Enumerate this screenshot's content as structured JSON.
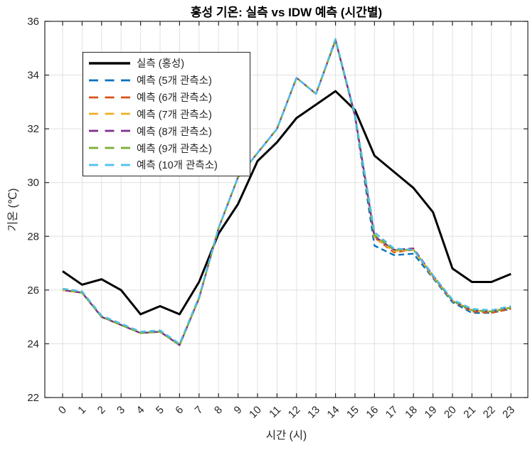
{
  "figure": {
    "title": "홍성 기온: 실측 vs IDW 예측 (시간별)",
    "xlabel": "시간 (시)",
    "ylabel": "기온 (℃)"
  },
  "chart_data": {
    "type": "line",
    "title": "홍성 기온: 실측 vs IDW 예측 (시간별)",
    "xlabel": "시간 (시)",
    "ylabel": "기온 (℃)",
    "x": [
      0,
      1,
      2,
      3,
      4,
      5,
      6,
      7,
      8,
      9,
      10,
      11,
      12,
      13,
      14,
      15,
      16,
      17,
      18,
      19,
      20,
      21,
      22,
      23
    ],
    "xlim": [
      -0.9,
      23.9
    ],
    "ylim": [
      22,
      36
    ],
    "yticks": [
      22,
      24,
      26,
      28,
      30,
      32,
      34,
      36
    ],
    "grid": true,
    "legend_position": "upper-left",
    "axis_color": "#262626",
    "grid_color": "#e0e0e0",
    "background": "#ffffff",
    "series": [
      {
        "id": "actual",
        "label": "실측 (홍성)",
        "color": "#000000",
        "style": "solid",
        "width": 3,
        "values": [
          26.7,
          26.2,
          26.4,
          26.0,
          25.1,
          25.4,
          25.1,
          26.3,
          28.1,
          29.2,
          30.8,
          31.5,
          32.4,
          32.9,
          33.4,
          32.7,
          31.0,
          30.4,
          29.8,
          28.9,
          26.8,
          26.3,
          26.3,
          26.6
        ]
      },
      {
        "id": "pred-5",
        "label": "예측 (5개 관측소)",
        "color": "#0072BD",
        "style": "dashed",
        "width": 2.4,
        "values": [
          26.0,
          25.9,
          25.0,
          24.7,
          24.4,
          24.45,
          23.95,
          25.7,
          28.3,
          30.2,
          31.1,
          32.0,
          33.9,
          33.3,
          35.3,
          32.45,
          27.65,
          27.3,
          27.35,
          26.45,
          25.55,
          25.15,
          25.15,
          25.3
        ]
      },
      {
        "id": "pred-6",
        "label": "예측 (6개 관측소)",
        "color": "#D95319",
        "style": "dashed",
        "width": 2.4,
        "values": [
          26.0,
          25.9,
          25.0,
          24.7,
          24.4,
          24.45,
          23.95,
          25.7,
          28.3,
          30.2,
          31.1,
          32.0,
          33.9,
          33.3,
          35.3,
          32.5,
          27.95,
          27.4,
          27.5,
          26.5,
          25.6,
          25.2,
          25.15,
          25.3
        ]
      },
      {
        "id": "pred-7",
        "label": "예측 (7개 관측소)",
        "color": "#EDB120",
        "style": "dashed",
        "width": 2.4,
        "values": [
          26.0,
          25.9,
          25.0,
          24.7,
          24.4,
          24.45,
          23.95,
          25.7,
          28.3,
          30.2,
          31.1,
          32.0,
          33.9,
          33.3,
          35.3,
          32.5,
          27.95,
          27.45,
          27.5,
          26.5,
          25.6,
          25.25,
          25.2,
          25.35
        ]
      },
      {
        "id": "pred-8",
        "label": "예측 (8개 관측소)",
        "color": "#7E2F8E",
        "style": "dashed",
        "width": 2.4,
        "values": [
          26.0,
          25.9,
          25.0,
          24.7,
          24.4,
          24.45,
          23.95,
          25.7,
          28.3,
          30.2,
          31.1,
          32.0,
          33.9,
          33.3,
          35.3,
          32.5,
          28.0,
          27.5,
          27.55,
          26.55,
          25.6,
          25.25,
          25.2,
          25.35
        ]
      },
      {
        "id": "pred-9",
        "label": "예측 (9개 관측소)",
        "color": "#77AC30",
        "style": "dashed",
        "width": 2.4,
        "values": [
          26.05,
          25.9,
          25.0,
          24.7,
          24.4,
          24.45,
          23.95,
          25.7,
          28.3,
          30.2,
          31.1,
          32.0,
          33.9,
          33.3,
          35.3,
          32.5,
          28.05,
          27.5,
          27.5,
          26.55,
          25.6,
          25.25,
          25.2,
          25.35
        ]
      },
      {
        "id": "pred-10",
        "label": "예측 (10개 관측소)",
        "color": "#4DBEEE",
        "style": "dashed",
        "width": 2.4,
        "values": [
          26.05,
          25.95,
          25.05,
          24.75,
          24.45,
          24.5,
          24.0,
          25.75,
          28.3,
          30.2,
          31.1,
          32.0,
          33.9,
          33.3,
          35.35,
          32.55,
          28.15,
          27.55,
          27.5,
          26.55,
          25.65,
          25.3,
          25.25,
          25.4
        ]
      }
    ]
  }
}
